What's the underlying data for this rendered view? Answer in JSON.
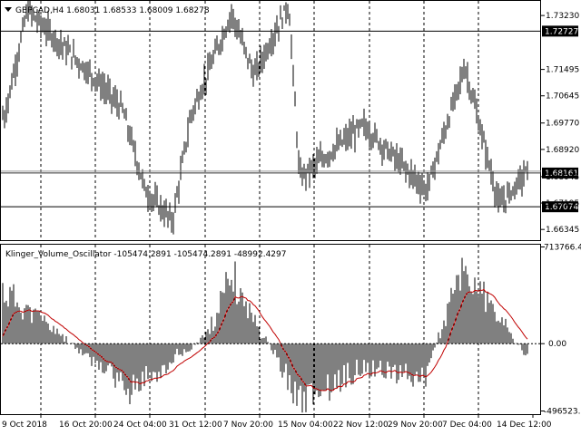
{
  "main_panel": {
    "header": "GBPCAD,H4  1.68031 1.68533 1.68009 1.68278",
    "price_labels": [
      "1.73230",
      "1.71495",
      "1.70645",
      "1.69770",
      "1.68920",
      "1.68045",
      "1.67195",
      "1.66345"
    ],
    "hlines": [
      {
        "price": 1.72727,
        "label": "1.72727"
      },
      {
        "price": 1.68161,
        "label": "1.68161"
      },
      {
        "price": 1.67074,
        "label": "1.67074"
      }
    ],
    "price_range": [
      1.66,
      1.737
    ]
  },
  "indicator_panel": {
    "header": "Klinger_Volume_Oscillator -105474.2891 -105474.2891 -48992.4297",
    "value_labels": {
      "top": "713766.47",
      "zero": "0.00",
      "bottom": "-496523.9"
    },
    "value_range": [
      -520000,
      730000
    ]
  },
  "time_labels": [
    "9 Oct 2018",
    "16 Oct 20:00",
    "24 Oct 04:00",
    "31 Oct 12:00",
    "7 Nov 20:00",
    "15 Nov 04:00",
    "22 Nov 12:00",
    "29 Nov 20:00",
    "7 Dec 04:00",
    "14 Dec 12:00"
  ],
  "chart_data": [
    {
      "type": "bar",
      "title": "GBPCAD,H4  1.68031 1.68533 1.68009 1.68278",
      "description_of_series": "OHLC bars (approximate key levels read from the price axis)",
      "ylim": [
        1.66,
        1.737
      ],
      "keypoints": [
        {
          "x": "9 Oct 2018",
          "y": 1.7
        },
        {
          "x": "11 Oct",
          "y": 1.734
        },
        {
          "x": "16 Oct 20:00",
          "y": 1.712
        },
        {
          "x": "20 Oct",
          "y": 1.702
        },
        {
          "x": "24 Oct 04:00",
          "y": 1.676
        },
        {
          "x": "31 Oct 12:00",
          "y": 1.666
        },
        {
          "x": "2 Nov",
          "y": 1.7
        },
        {
          "x": "7 Nov 20:00",
          "y": 1.733
        },
        {
          "x": "10 Nov",
          "y": 1.713
        },
        {
          "x": "15 Nov 04:00",
          "y": 1.736
        },
        {
          "x": "15 Nov 04:00",
          "y": 1.68
        },
        {
          "x": "22 Nov 12:00",
          "y": 1.697
        },
        {
          "x": "29 Nov 20:00",
          "y": 1.676
        },
        {
          "x": "7 Dec 04:00",
          "y": 1.716
        },
        {
          "x": "9 Dec",
          "y": 1.671
        },
        {
          "x": "14 Dec 12:00",
          "y": 1.682
        }
      ]
    },
    {
      "type": "bar",
      "title": "Klinger_Volume_Oscillator -105474.2891 -105474.2891 -48992.4297",
      "description_of_series": "histogram with signal line",
      "ylim": [
        -496523.9,
        713766.47
      ],
      "keypoints": [
        {
          "x": "9 Oct 2018",
          "y": 450000
        },
        {
          "x": "16 Oct 20:00",
          "y": -150000
        },
        {
          "x": "24 Oct 04:00",
          "y": -420000
        },
        {
          "x": "31 Oct 12:00",
          "y": 60000
        },
        {
          "x": "7 Nov 20:00",
          "y": 560000
        },
        {
          "x": "15 Nov 04:00",
          "y": -480000
        },
        {
          "x": "22 Nov 12:00",
          "y": -200000
        },
        {
          "x": "29 Nov 20:00",
          "y": -300000
        },
        {
          "x": "7 Dec 04:00",
          "y": 650000
        },
        {
          "x": "14 Dec 12:00",
          "y": -105474.2891
        }
      ]
    }
  ]
}
